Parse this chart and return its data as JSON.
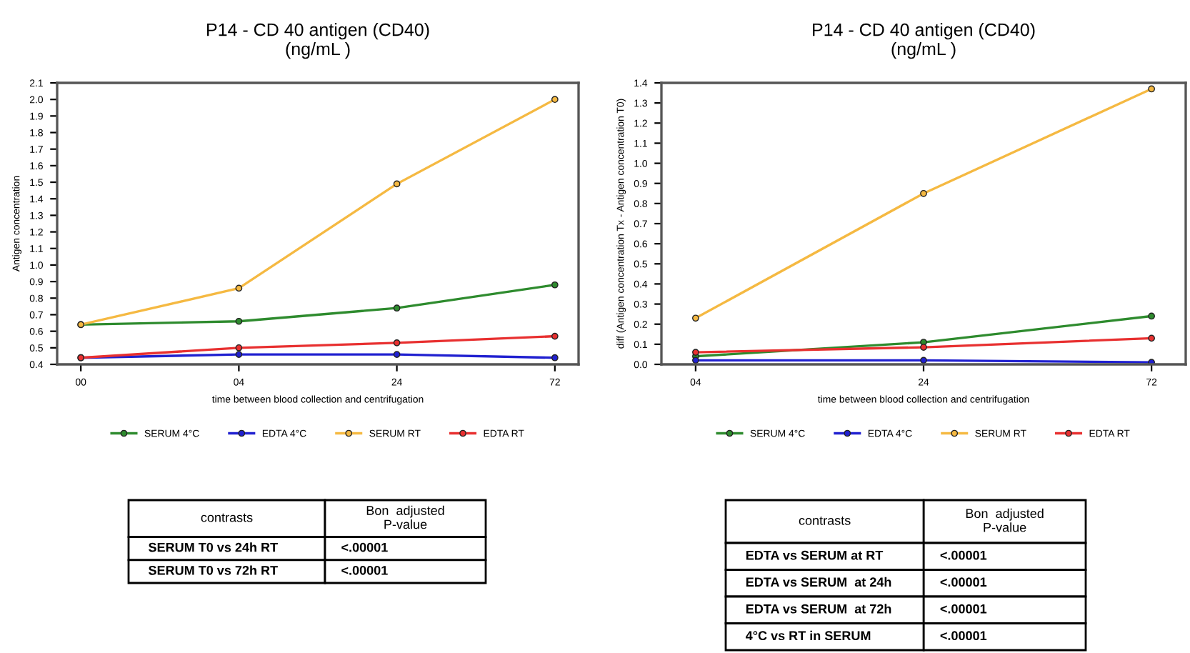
{
  "chart_data": [
    {
      "type": "line",
      "title": "P14 - CD 40 antigen (CD40)\n(ng/mL )",
      "xlabel": "time between blood collection and centrifugation",
      "ylabel": "Antigen concentration",
      "categories": [
        "00",
        "04",
        "24",
        "72"
      ],
      "series": [
        {
          "name": "SERUM 4°C",
          "color": "#2e8b2e",
          "values": [
            0.64,
            0.66,
            0.74,
            0.88
          ]
        },
        {
          "name": "EDTA 4°C",
          "color": "#2020d0",
          "values": [
            0.44,
            0.46,
            0.46,
            0.44
          ]
        },
        {
          "name": "SERUM RT",
          "color": "#f5b942",
          "values": [
            0.64,
            0.86,
            1.49,
            2.0
          ]
        },
        {
          "name": "EDTA RT",
          "color": "#e83030",
          "values": [
            0.44,
            0.5,
            0.53,
            0.57
          ]
        }
      ],
      "ylim": [
        0.4,
        2.1
      ],
      "yticks": [
        0.4,
        0.5,
        0.6,
        0.7,
        0.8,
        0.9,
        {
          "value": 1,
          "label": "1.0"
        },
        1.1,
        1.2,
        1.3,
        1.4,
        1.5,
        1.6,
        1.7,
        1.8,
        1.9,
        {
          "value": 2,
          "label": "2.0"
        },
        2.1
      ],
      "marker": "circle",
      "legend": "bottom",
      "grid": false,
      "annotations": [
        "contrasts",
        "Bon  adjusted\nP-value",
        "SERUM T0 vs 24h RT",
        "<.00001",
        "SERUM T0 vs 72h RT",
        "<.00001"
      ]
    },
    {
      "type": "line",
      "title": "P14 - CD 40 antigen (CD40)\n(ng/mL )",
      "xlabel": "time between blood collection and centrifugation",
      "ylabel": "diff (Antigen concentration Tx - Antigen concentration T0)",
      "categories": [
        "04",
        "24",
        "72"
      ],
      "series": [
        {
          "name": "SERUM 4°C",
          "color": "#2e8b2e",
          "values": [
            0.04,
            0.11,
            0.24
          ]
        },
        {
          "name": "EDTA 4°C",
          "color": "#2020d0",
          "values": [
            0.02,
            0.02,
            0.01
          ]
        },
        {
          "name": "SERUM RT",
          "color": "#f5b942",
          "values": [
            0.23,
            0.85,
            1.37
          ]
        },
        {
          "name": "EDTA RT",
          "color": "#e83030",
          "values": [
            0.06,
            0.085,
            0.13
          ]
        }
      ],
      "ylim": [
        0,
        1.4
      ],
      "yticks": [
        {
          "value": 0,
          "label": "0.0"
        },
        0.1,
        0.2,
        0.3,
        0.4,
        0.5,
        0.6,
        0.7,
        0.8,
        0.9,
        {
          "value": 1,
          "label": "1.0"
        },
        1.1,
        1.2,
        1.3,
        1.4
      ],
      "marker": "circle",
      "legend": "bottom",
      "grid": false,
      "annotations": [
        "contrasts",
        "Bon  adjusted\nP-value",
        "EDTA vs SERUM at RT",
        "<.00001",
        "EDTA vs SERUM  at 24h",
        "<.00001",
        "EDTA vs SERUM  at 72h",
        "<.00001",
        "4°C vs RT in SERUM",
        "<.00001"
      ]
    }
  ]
}
